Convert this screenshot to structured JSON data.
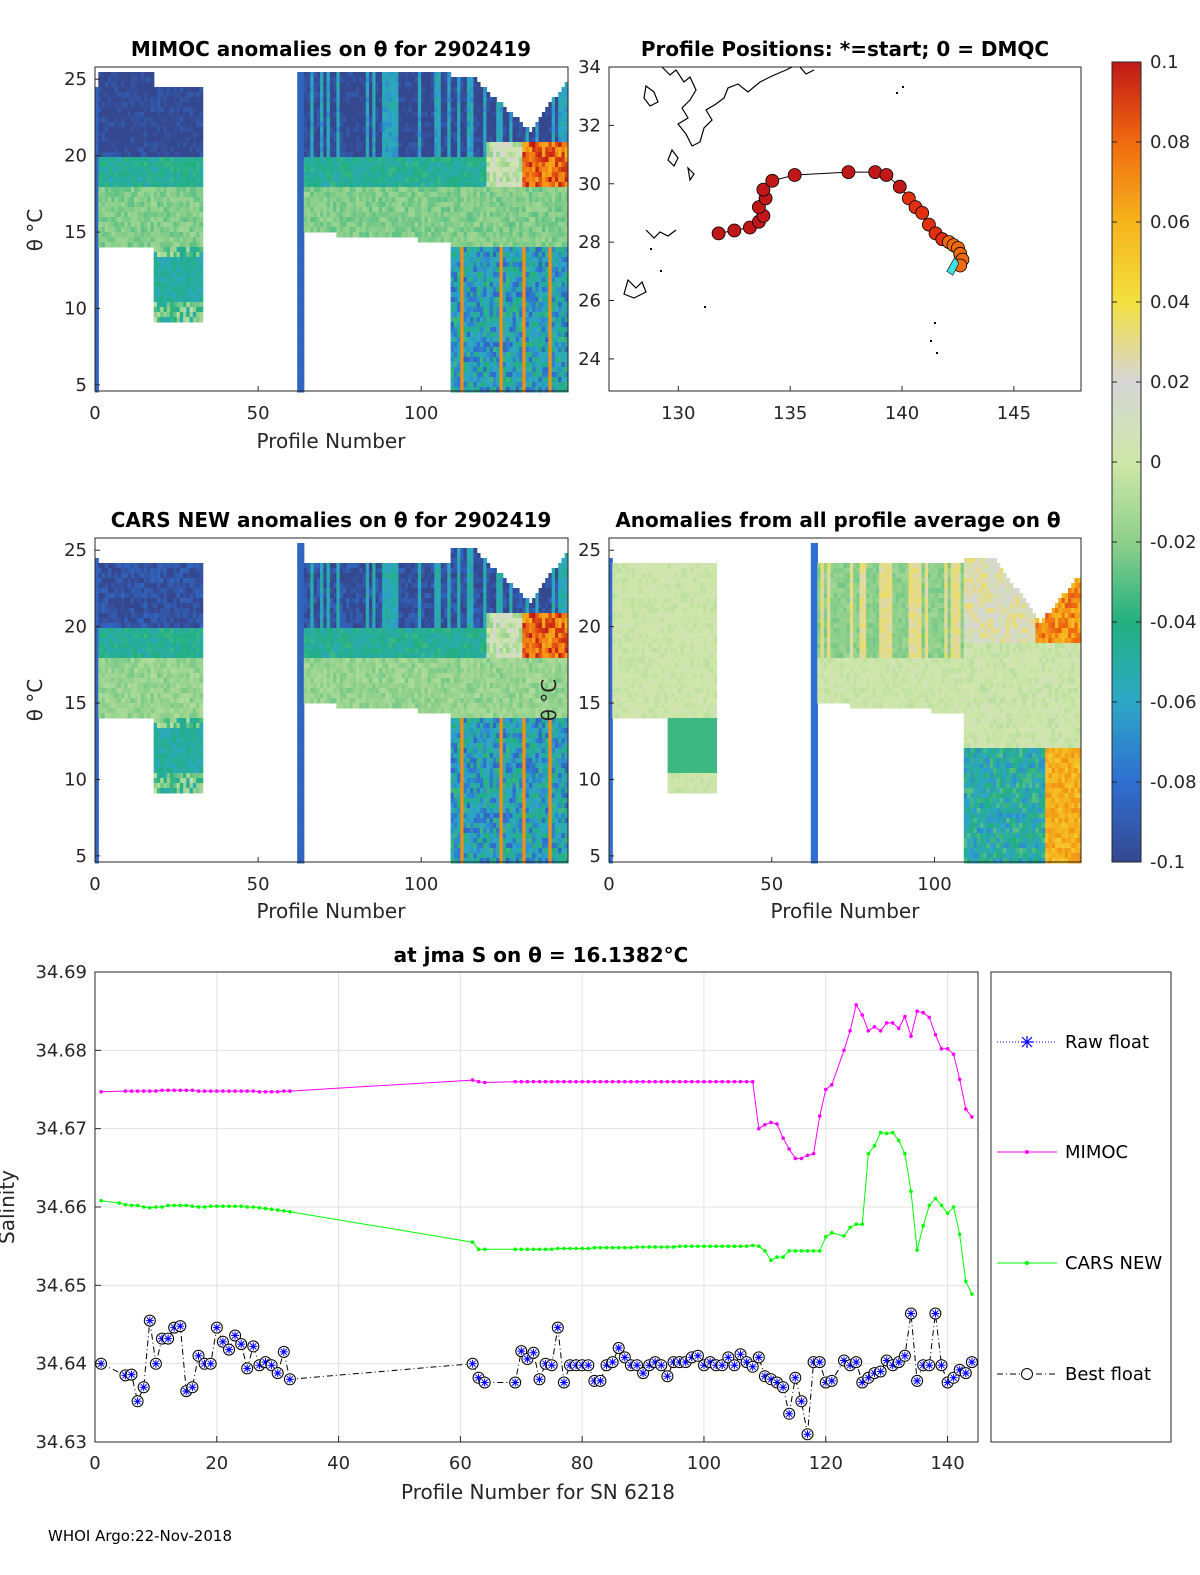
{
  "colorbar": {
    "ticks": [
      "0.1",
      "0.08",
      "0.06",
      "0.04",
      "0.02",
      "0",
      "-0.02",
      "-0.04",
      "-0.06",
      "-0.08",
      "-0.1"
    ],
    "range": [
      -0.1,
      0.1
    ],
    "colors": [
      "#35488f",
      "#2f6fd0",
      "#2ea7c7",
      "#22b080",
      "#8ed08b",
      "#cfe7a8",
      "#d6d6d6",
      "#f3e040",
      "#f5b41c",
      "#f06a10",
      "#c01818"
    ]
  },
  "panel_a": {
    "title": "MIMOC anomalies on θ  for 2902419",
    "xlabel": "Profile Number",
    "ylabel": "θ °C",
    "xticks": [
      "0",
      "50",
      "100"
    ],
    "yticks": [
      "25",
      "20",
      "15",
      "10",
      "5"
    ]
  },
  "panel_b": {
    "title": "Profile Positions: *=start; 0 = DMQC",
    "xticks": [
      "130",
      "135",
      "140",
      "145"
    ],
    "yticks": [
      "34",
      "32",
      "30",
      "28",
      "26",
      "24"
    ]
  },
  "panel_c": {
    "title": "CARS NEW anomalies on θ for 2902419",
    "xlabel": "Profile Number",
    "ylabel": "θ °C",
    "xticks": [
      "0",
      "50",
      "100"
    ],
    "yticks": [
      "25",
      "20",
      "15",
      "10",
      "5"
    ]
  },
  "panel_d": {
    "title": "Anomalies from all profile average on θ",
    "xlabel": "Profile Number",
    "ylabel": "θ °C",
    "xticks": [
      "0",
      "50",
      "100"
    ],
    "yticks": [
      "25",
      "20",
      "15",
      "10",
      "5"
    ]
  },
  "chart_data": {
    "type": "line",
    "title": "at jma S on θ = 16.1382°C",
    "xlabel": "Profile Number for SN 6218",
    "ylabel": "Salinity",
    "xlim": [
      0,
      145
    ],
    "ylim": [
      34.63,
      34.69
    ],
    "xticks": [
      "0",
      "20",
      "40",
      "60",
      "80",
      "100",
      "120",
      "140"
    ],
    "yticks": [
      "34.69",
      "34.68",
      "34.67",
      "34.66",
      "34.65",
      "34.64",
      "34.63"
    ],
    "series": [
      {
        "name": "Raw float",
        "color": "#0000ff",
        "x": [],
        "values": []
      },
      {
        "name": "MIMOC",
        "color": "#ff00ff",
        "x": [
          1,
          5,
          6,
          7,
          8,
          9,
          10,
          11,
          12,
          13,
          14,
          15,
          16,
          17,
          18,
          19,
          20,
          21,
          22,
          23,
          24,
          25,
          26,
          27,
          28,
          29,
          30,
          31,
          32,
          62,
          63,
          64,
          69,
          70,
          71,
          72,
          73,
          74,
          75,
          76,
          77,
          78,
          79,
          80,
          81,
          82,
          83,
          84,
          85,
          86,
          87,
          88,
          89,
          90,
          91,
          92,
          93,
          94,
          95,
          96,
          97,
          98,
          99,
          100,
          101,
          102,
          103,
          104,
          105,
          106,
          107,
          108,
          109,
          110,
          111,
          112,
          113,
          114,
          115,
          116,
          117,
          118,
          119,
          120,
          121,
          123,
          124,
          125,
          126,
          127,
          128,
          129,
          130,
          131,
          132,
          133,
          134,
          135,
          136,
          137,
          138,
          139,
          140,
          141,
          142,
          143,
          144
        ],
        "values": [
          34.6747,
          34.6748,
          34.6748,
          34.6748,
          34.6748,
          34.6748,
          34.6748,
          34.6749,
          34.6749,
          34.6749,
          34.6749,
          34.6749,
          34.6749,
          34.6748,
          34.6748,
          34.6748,
          34.6748,
          34.6748,
          34.6748,
          34.6748,
          34.6748,
          34.6748,
          34.6748,
          34.6747,
          34.6747,
          34.6747,
          34.6747,
          34.6748,
          34.6748,
          34.6762,
          34.676,
          34.6759,
          34.676,
          34.676,
          34.676,
          34.676,
          34.676,
          34.676,
          34.676,
          34.676,
          34.676,
          34.676,
          34.676,
          34.676,
          34.676,
          34.676,
          34.676,
          34.676,
          34.676,
          34.676,
          34.676,
          34.676,
          34.676,
          34.676,
          34.676,
          34.676,
          34.676,
          34.676,
          34.676,
          34.676,
          34.676,
          34.676,
          34.676,
          34.676,
          34.676,
          34.676,
          34.676,
          34.676,
          34.676,
          34.676,
          34.676,
          34.676,
          34.67,
          34.6705,
          34.6708,
          34.6706,
          34.6688,
          34.6674,
          34.6662,
          34.6662,
          34.6666,
          34.6668,
          34.6716,
          34.675,
          34.6756,
          34.68,
          34.6825,
          34.6858,
          34.6845,
          34.6825,
          34.683,
          34.6825,
          34.6835,
          34.6835,
          34.6828,
          34.6843,
          34.6818,
          34.685,
          34.6848,
          34.6842,
          34.682,
          34.6802,
          34.6802,
          34.6795,
          34.6763,
          34.6725,
          34.6715
        ]
      },
      {
        "name": "CARS NEW",
        "color": "#00ff00",
        "x": [
          1,
          4,
          5,
          6,
          7,
          8,
          9,
          10,
          11,
          12,
          13,
          14,
          15,
          16,
          17,
          18,
          19,
          20,
          21,
          22,
          23,
          24,
          25,
          26,
          27,
          28,
          29,
          30,
          31,
          32,
          62,
          63,
          64,
          69,
          70,
          71,
          72,
          73,
          74,
          75,
          76,
          77,
          78,
          79,
          80,
          81,
          82,
          83,
          84,
          85,
          86,
          87,
          88,
          89,
          90,
          91,
          92,
          93,
          94,
          95,
          96,
          97,
          98,
          99,
          100,
          101,
          102,
          103,
          104,
          105,
          106,
          107,
          108,
          109,
          110,
          111,
          112,
          113,
          114,
          115,
          116,
          117,
          118,
          119,
          120,
          121,
          123,
          124,
          125,
          126,
          127,
          128,
          129,
          130,
          131,
          132,
          133,
          134,
          135,
          136,
          137,
          138,
          139,
          140,
          141,
          142,
          143,
          144
        ],
        "values": [
          34.6608,
          34.6605,
          34.6603,
          34.6602,
          34.6602,
          34.66,
          34.6599,
          34.66,
          34.66,
          34.6602,
          34.6602,
          34.6602,
          34.6602,
          34.6601,
          34.66,
          34.66,
          34.6601,
          34.6601,
          34.6601,
          34.6601,
          34.6601,
          34.6601,
          34.66,
          34.66,
          34.6599,
          34.6598,
          34.6597,
          34.6596,
          34.6595,
          34.6594,
          34.6555,
          34.6546,
          34.6546,
          34.6546,
          34.6546,
          34.6546,
          34.6546,
          34.6546,
          34.6546,
          34.6546,
          34.6547,
          34.6547,
          34.6547,
          34.6547,
          34.6547,
          34.6547,
          34.6548,
          34.6548,
          34.6548,
          34.6548,
          34.6548,
          34.6548,
          34.6548,
          34.6549,
          34.6549,
          34.6549,
          34.6549,
          34.6549,
          34.6549,
          34.6549,
          34.655,
          34.655,
          34.655,
          34.655,
          34.655,
          34.655,
          34.655,
          34.655,
          34.655,
          34.655,
          34.655,
          34.655,
          34.6551,
          34.655,
          34.6544,
          34.6532,
          34.6536,
          34.6536,
          34.6544,
          34.6544,
          34.6544,
          34.6544,
          34.6544,
          34.6544,
          34.6562,
          34.6567,
          34.6563,
          34.6574,
          34.6578,
          34.6578,
          34.6668,
          34.6678,
          34.6695,
          34.6694,
          34.6695,
          34.6685,
          34.6668,
          34.662,
          34.6545,
          34.6576,
          34.6602,
          34.6611,
          34.6602,
          34.6592,
          34.66,
          34.6565,
          34.6505,
          34.6489
        ]
      },
      {
        "name": "Best float",
        "color": "#000000",
        "x": [
          1,
          5,
          6,
          7,
          8,
          9,
          10,
          11,
          12,
          13,
          14,
          15,
          16,
          17,
          18,
          19,
          20,
          21,
          22,
          23,
          24,
          25,
          26,
          27,
          28,
          29,
          30,
          31,
          32,
          62,
          63,
          64,
          69,
          70,
          71,
          72,
          73,
          74,
          75,
          76,
          77,
          78,
          79,
          80,
          81,
          82,
          83,
          84,
          85,
          86,
          87,
          88,
          89,
          90,
          91,
          92,
          93,
          94,
          95,
          96,
          97,
          98,
          99,
          100,
          101,
          102,
          103,
          104,
          105,
          106,
          107,
          108,
          109,
          110,
          111,
          112,
          113,
          114,
          115,
          116,
          117,
          118,
          119,
          120,
          121,
          123,
          124,
          125,
          126,
          127,
          128,
          129,
          130,
          131,
          132,
          133,
          134,
          135,
          136,
          137,
          138,
          139,
          140,
          141,
          142,
          143,
          144
        ],
        "values": [
          34.64,
          34.6385,
          34.6386,
          34.6352,
          34.637,
          34.6455,
          34.64,
          34.6432,
          34.6432,
          34.6446,
          34.6448,
          34.6365,
          34.637,
          34.641,
          34.64,
          34.64,
          34.6446,
          34.6428,
          34.6418,
          34.6436,
          34.6425,
          34.6394,
          34.6422,
          34.6398,
          34.6402,
          34.6398,
          34.6388,
          34.6415,
          34.638,
          34.64,
          34.6382,
          34.6376,
          34.6376,
          34.6416,
          34.6406,
          34.6414,
          34.638,
          34.64,
          34.6398,
          34.6446,
          34.6376,
          34.6398,
          34.6398,
          34.6398,
          34.6398,
          34.6378,
          34.6378,
          34.6398,
          34.6402,
          34.642,
          34.6408,
          34.6398,
          34.6398,
          34.6388,
          34.6398,
          34.6402,
          34.6398,
          34.6384,
          34.6402,
          34.6402,
          34.6402,
          34.6408,
          34.641,
          34.6398,
          34.6402,
          34.6398,
          34.6398,
          34.6408,
          34.6398,
          34.6412,
          34.6402,
          34.6396,
          34.6408,
          34.6384,
          34.638,
          34.6376,
          34.637,
          34.6336,
          34.6382,
          34.6352,
          34.631,
          34.6402,
          34.6402,
          34.6376,
          34.6378,
          34.6404,
          34.6398,
          34.6402,
          34.6376,
          34.6382,
          34.6388,
          34.639,
          34.6404,
          34.6398,
          34.6402,
          34.641,
          34.6464,
          34.6378,
          34.6398,
          34.6398,
          34.6464,
          34.6398,
          34.6376,
          34.6382,
          34.6392,
          34.6388,
          34.6402
        ]
      }
    ]
  },
  "footer": "WHOI Argo:22-Nov-2018"
}
